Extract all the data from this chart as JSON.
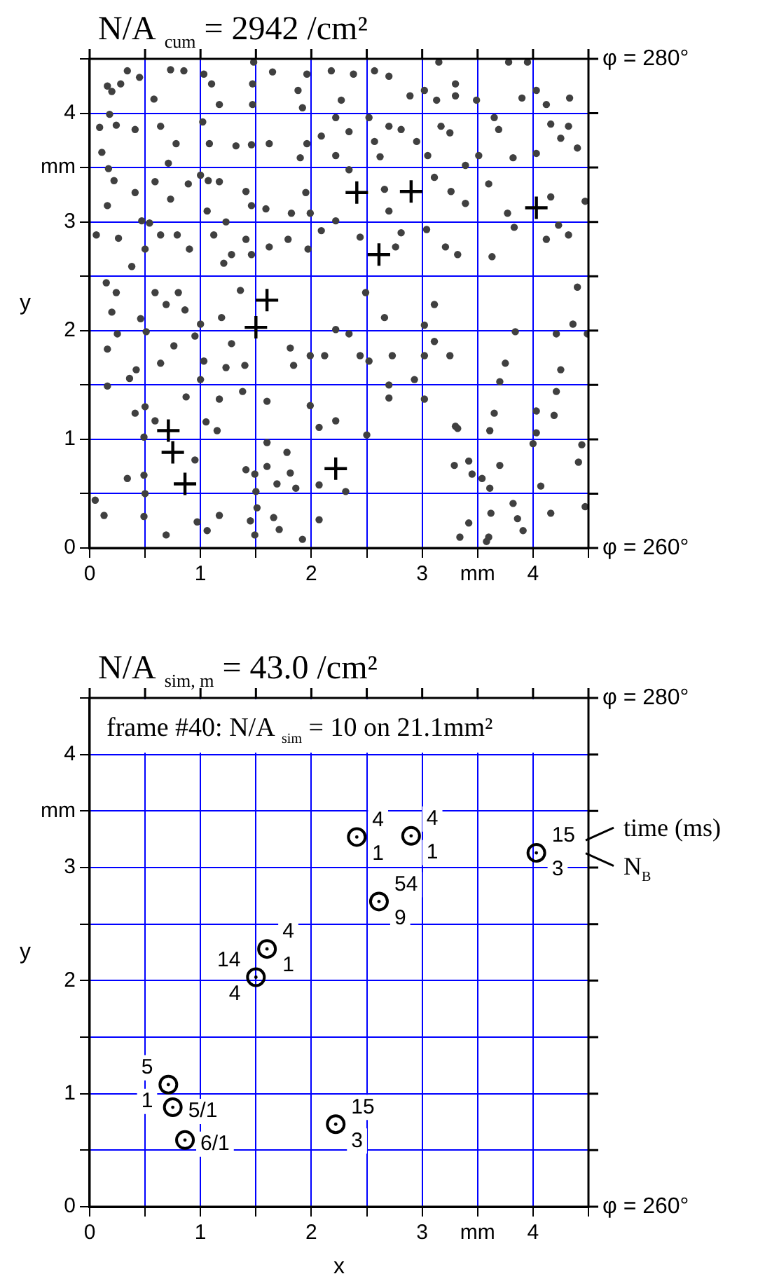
{
  "chart_data": [
    {
      "type": "scatter",
      "title": "N/A $_{cum}$ = 2942 /cm²",
      "ylabel": "y",
      "xlim": [
        0,
        4.5
      ],
      "ylim": [
        0,
        4.5
      ],
      "xticks": [
        0,
        {
          "value": 0.5,
          "label": null
        },
        1,
        {
          "value": 1.5,
          "label": null
        },
        2,
        {
          "value": 2.5,
          "label": null
        },
        3,
        {
          "value": 3.5,
          "label": "mm"
        },
        4,
        {
          "value": 4.5,
          "label": null
        }
      ],
      "yticks": [
        0,
        {
          "value": 0.5,
          "label": null
        },
        1,
        {
          "value": 1.5,
          "label": null
        },
        2,
        {
          "value": 2.5,
          "label": null
        },
        3,
        {
          "value": 3.5,
          "label": "mm"
        },
        4,
        {
          "value": 4.5,
          "label": null
        }
      ],
      "grid": true,
      "legend": false,
      "annotations": [
        "φ = 280°",
        "φ = 260°"
      ],
      "series": [
        {
          "color": "#404040",
          "marker": "circle",
          "x": [
            0.09,
            0.16,
            0.2,
            0.28,
            0.34,
            0.45,
            0.18,
            0.24,
            0.41,
            0.11,
            0.17,
            0.22,
            0.16,
            0.06,
            0.26,
            0.41,
            0.47,
            0.54,
            0.5,
            0.38,
            0.58,
            0.73,
            0.85,
            0.64,
            0.78,
            0.71,
            0.89,
            0.59,
            0.73,
            0.79,
            0.64,
            0.9,
            1.03,
            1.1,
            1.17,
            1.02,
            1.08,
            1.0,
            1.07,
            1.17,
            1.06,
            1.23,
            1.12,
            1.28,
            1.21,
            1.48,
            1.47,
            1.65,
            1.47,
            1.32,
            1.46,
            1.62,
            1.41,
            1.46,
            1.59,
            1.41,
            1.46,
            1.62,
            1.82,
            1.79,
            1.88,
            1.96,
            1.92,
            1.96,
            2.09,
            1.9,
            1.95,
            1.99,
            2.09,
            1.97,
            2.18,
            2.38,
            2.27,
            2.22,
            2.34,
            2.22,
            2.34,
            2.22,
            2.44,
            2.57,
            2.7,
            2.52,
            2.57,
            2.62,
            2.7,
            2.81,
            2.66,
            2.7,
            2.81,
            2.76,
            2.89,
            2.95,
            3.05,
            3.02,
            3.15,
            3.13,
            3.11,
            3.04,
            3.21,
            3.3,
            3.3,
            3.17,
            3.25,
            3.39,
            3.26,
            3.39,
            3.32,
            3.49,
            3.51,
            3.65,
            3.78,
            3.9,
            3.69,
            3.82,
            3.6,
            3.77,
            3.83,
            3.63,
            3.95,
            4.03,
            4.12,
            4.33,
            4.16,
            4.32,
            4.25,
            4.4,
            4.03,
            4.16,
            4.23,
            4.12,
            4.32,
            4.47,
            0.15,
            0.24,
            0.2,
            0.25,
            0.16,
            0.16,
            0.42,
            0.36,
            0.51,
            0.46,
            0.59,
            0.69,
            0.8,
            0.86,
            0.76,
            0.64,
            0.41,
            0.5,
            0.59,
            0.49,
            0.34,
            0.49,
            0.5,
            0.49,
            0.13,
            0.05,
            0.69,
            0.95,
            0.97,
            0.95,
            1.0,
            1.03,
            1.0,
            0.87,
            1.05,
            1.15,
            1.06,
            1.17,
            1.19,
            1.28,
            1.23,
            1.17,
            1.36,
            1.38,
            1.4,
            1.41,
            1.49,
            1.45,
            1.49,
            1.5,
            1.51,
            1.6,
            1.6,
            1.6,
            1.66,
            1.69,
            1.81,
            1.86,
            1.81,
            1.84,
            1.78,
            1.71,
            1.92,
            1.99,
            1.99,
            2.07,
            2.07,
            2.07,
            2.12,
            2.22,
            2.22,
            2.31,
            2.34,
            2.44,
            2.52,
            2.5,
            2.49,
            2.66,
            2.73,
            2.7,
            2.7,
            2.93,
            3.02,
            3.02,
            3.11,
            3.02,
            3.11,
            3.25,
            3.3,
            3.32,
            3.29,
            3.42,
            3.45,
            3.34,
            3.42,
            3.54,
            3.61,
            3.62,
            3.6,
            3.58,
            3.61,
            3.65,
            3.7,
            3.7,
            3.84,
            3.75,
            3.82,
            3.86,
            3.91,
            4.0,
            4.03,
            4.07,
            4.03,
            4.16,
            4.19,
            4.21,
            4.25,
            4.21,
            4.36,
            4.41,
            4.44,
            4.47,
            4.4,
            4.49
          ],
          "values": [
            3.87,
            4.25,
            4.2,
            4.27,
            4.39,
            4.33,
            3.99,
            3.89,
            3.85,
            3.64,
            3.49,
            3.38,
            3.15,
            2.88,
            2.85,
            3.27,
            3.01,
            2.99,
            2.75,
            2.59,
            4.13,
            4.4,
            4.39,
            3.88,
            3.72,
            3.54,
            3.35,
            3.37,
            3.21,
            2.88,
            2.88,
            2.75,
            4.36,
            4.27,
            4.08,
            3.92,
            3.72,
            3.43,
            3.38,
            3.37,
            3.1,
            3.0,
            2.88,
            2.7,
            2.62,
            4.47,
            4.27,
            4.38,
            4.08,
            3.7,
            3.71,
            3.72,
            3.28,
            3.15,
            3.12,
            2.84,
            2.7,
            2.77,
            3.08,
            2.84,
            4.21,
            4.36,
            4.05,
            3.72,
            3.79,
            3.59,
            3.27,
            3.08,
            2.92,
            2.75,
            4.39,
            4.36,
            4.12,
            3.96,
            3.83,
            3.61,
            3.48,
            3.01,
            2.86,
            4.39,
            4.34,
            3.96,
            3.74,
            3.6,
            3.88,
            3.85,
            3.3,
            3.1,
            2.9,
            2.77,
            4.16,
            3.74,
            3.61,
            4.21,
            4.47,
            4.12,
            3.41,
            2.93,
            2.77,
            4.27,
            4.16,
            3.88,
            3.82,
            3.52,
            3.28,
            3.17,
            2.7,
            4.12,
            3.61,
            3.96,
            4.47,
            4.14,
            3.85,
            3.59,
            3.35,
            3.08,
            2.95,
            2.68,
            4.47,
            4.21,
            4.08,
            4.14,
            3.9,
            3.88,
            3.77,
            3.68,
            3.63,
            3.23,
            2.97,
            2.84,
            2.88,
            3.19,
            2.44,
            2.35,
            2.17,
            1.97,
            1.83,
            1.49,
            1.64,
            1.56,
            1.99,
            2.11,
            2.35,
            2.24,
            2.35,
            2.19,
            1.86,
            1.7,
            1.24,
            1.3,
            1.17,
            1.02,
            0.64,
            0.67,
            0.5,
            0.29,
            0.3,
            0.44,
            0.12,
            0.81,
            0.24,
            1.95,
            2.06,
            1.72,
            1.55,
            1.39,
            1.16,
            1.08,
            0.16,
            0.3,
            2.12,
            1.88,
            1.66,
            1.37,
            2.37,
            1.44,
            1.68,
            0.72,
            0.68,
            0.25,
            0.12,
            0.52,
            0.37,
            0.75,
            0.97,
            1.35,
            0.28,
            0.59,
            0.69,
            0.55,
            1.84,
            1.68,
            0.88,
            0.17,
            0.08,
            1.31,
            1.77,
            1.11,
            0.58,
            0.26,
            1.77,
            2.01,
            1.17,
            0.52,
            1.97,
            1.77,
            1.72,
            1.04,
            2.35,
            2.12,
            1.77,
            1.38,
            1.5,
            1.55,
            1.37,
            1.77,
            1.9,
            2.05,
            2.24,
            1.77,
            1.12,
            1.1,
            0.76,
            0.8,
            0.68,
            0.1,
            0.23,
            0.64,
            0.55,
            0.32,
            0.1,
            0.06,
            1.08,
            1.24,
            0.76,
            1.53,
            1.99,
            1.7,
            0.41,
            0.27,
            0.16,
            0.96,
            1.06,
            0.57,
            1.26,
            0.32,
            1.22,
            1.44,
            1.64,
            1.97,
            2.06,
            0.79,
            0.95,
            0.38,
            2.4,
            1.97
          ]
        },
        {
          "color": "#000000",
          "marker": "cross",
          "x": [
            2.41,
            2.9,
            4.03,
            2.61,
            1.6,
            1.5,
            0.71,
            0.75,
            0.86,
            2.22
          ],
          "values": [
            3.27,
            3.28,
            3.13,
            2.7,
            2.28,
            2.03,
            1.08,
            0.88,
            0.59,
            0.73
          ]
        }
      ]
    },
    {
      "type": "scatter",
      "title": "N/A $_{sim, m}$ = 43.0 /cm²",
      "subtitle": "frame #40: N/A $_{sim}$ = 10 on 21.1mm²",
      "xlabel": "x",
      "ylabel": "y",
      "xlim": [
        0,
        4.5
      ],
      "ylim": [
        0,
        4.5
      ],
      "xticks": [
        0,
        {
          "value": 0.5,
          "label": null
        },
        1,
        {
          "value": 1.5,
          "label": null
        },
        2,
        {
          "value": 2.5,
          "label": null
        },
        3,
        {
          "value": 3.5,
          "label": "mm"
        },
        4,
        {
          "value": 4.5,
          "label": null
        }
      ],
      "yticks": [
        0,
        {
          "value": 0.5,
          "label": null
        },
        1,
        {
          "value": 1.5,
          "label": null
        },
        2,
        {
          "value": 2.5,
          "label": null
        },
        3,
        {
          "value": 3.5,
          "label": "mm"
        },
        4,
        {
          "value": 4.5,
          "label": null
        }
      ],
      "grid": true,
      "legend": false,
      "annotations": [
        "φ = 280°",
        "φ = 260°",
        "time (ms)",
        "N$_{B}$"
      ],
      "series": [
        {
          "color": "#000000",
          "marker": "circle",
          "x": [
            2.41,
            2.9,
            4.03,
            2.61,
            1.6,
            1.5,
            0.71,
            0.75,
            0.86,
            2.22
          ],
          "values": [
            3.27,
            3.28,
            3.13,
            2.7,
            2.28,
            2.03,
            1.08,
            0.88,
            0.59,
            0.73
          ],
          "value_labels": [
            "4\n1",
            "4\n1",
            "15\n3",
            "54\n9",
            "4\n1",
            "14\n4",
            "5\n1",
            "5/1",
            "6/1",
            "15\n3"
          ]
        }
      ]
    }
  ]
}
